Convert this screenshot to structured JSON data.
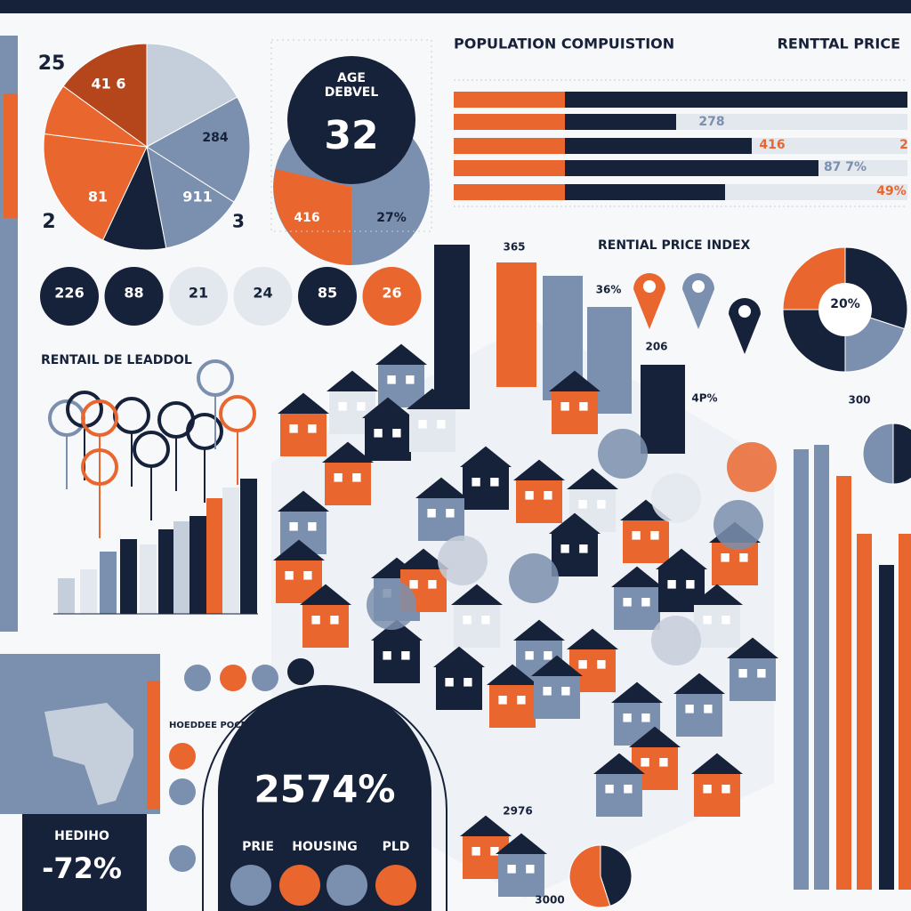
{
  "pie": {
    "labels": [
      "25",
      "41 6",
      "284",
      "81",
      "911",
      "2",
      "3"
    ]
  },
  "age_badge": {
    "line1": "AGE",
    "line2": "DEBVEL",
    "value": "32",
    "left": "416",
    "right": "27%"
  },
  "population": {
    "title": "POPULATION COMPUISTION",
    "side_title": "RENTTAL PRICE",
    "bar_labels": [
      "278",
      "416",
      "2",
      "87 7%",
      "49%"
    ]
  },
  "circles": [
    "226",
    "88",
    "21",
    "24",
    "85",
    "26"
  ],
  "rental_left": {
    "title": "RENTAIL DE LEADDOL"
  },
  "city": {
    "title": "RENTIAL PRICE INDEX",
    "labels": [
      "365",
      "36%",
      "206",
      "4P%",
      "2976",
      "3000"
    ]
  },
  "donut": {
    "center": "20%",
    "below": "300"
  },
  "arch": {
    "value": "2574%",
    "labels": [
      "PRIE",
      "HOUSING",
      "PLD"
    ]
  },
  "map_panel": {
    "caption": "HOEDDEE POCEDON"
  },
  "stat_panel": {
    "label": "HEDIHO",
    "value": "-72%"
  }
}
